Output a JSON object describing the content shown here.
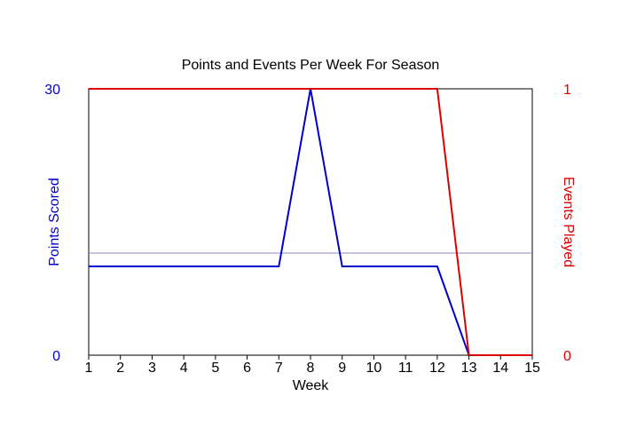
{
  "chart_data": {
    "type": "line",
    "title": "Points and Events Per Week For Season",
    "xlabel": "Week",
    "ylabel_left": "Points Scored",
    "ylabel_right": "Events Played",
    "x": [
      1,
      2,
      3,
      4,
      5,
      6,
      7,
      8,
      9,
      10,
      11,
      12,
      13,
      14,
      15
    ],
    "xlim": [
      1,
      15
    ],
    "ylim_left": [
      0,
      30
    ],
    "ylim_right": [
      0,
      1
    ],
    "yticks_left": [
      "0",
      "30"
    ],
    "yticks_right": [
      "0",
      "1"
    ],
    "series": [
      {
        "axis": "left",
        "color": "#0000cc",
        "values": [
          10,
          10,
          10,
          10,
          10,
          10,
          10,
          30,
          10,
          10,
          10,
          10,
          0,
          0,
          0
        ]
      },
      {
        "axis": "right",
        "color": "#dd0000",
        "values": [
          1,
          1,
          1,
          1,
          1,
          1,
          1,
          1,
          1,
          1,
          1,
          1,
          0,
          0,
          0
        ]
      }
    ],
    "reference_line": {
      "axis": "left",
      "value": 11.5,
      "color": "#8888bb"
    },
    "grid": false,
    "legend": "none"
  }
}
